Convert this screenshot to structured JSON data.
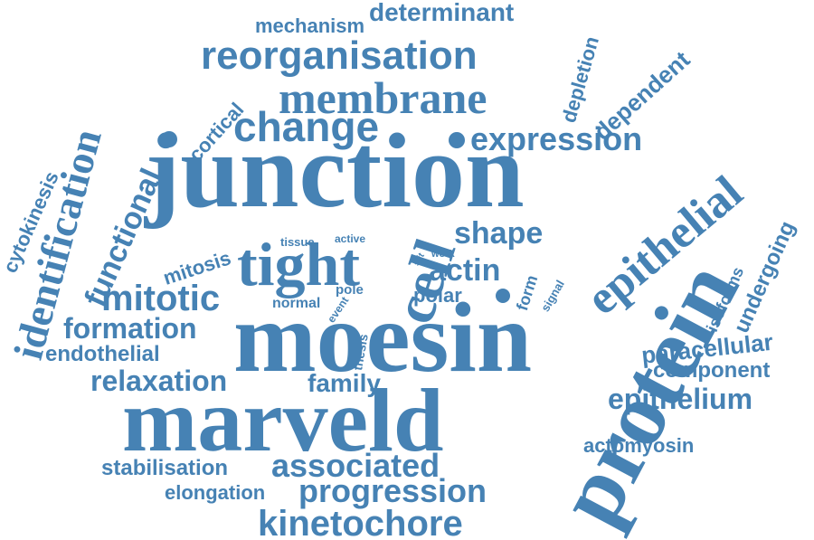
{
  "color": "#4682b4",
  "background": "#ffffff",
  "words": {
    "junction": "junction",
    "moesin": "moesin",
    "marveld": "marveld",
    "protein": "protein",
    "tight": "tight",
    "epithelial": "epithelial",
    "identification": "identification",
    "membrane": "membrane",
    "reorganisation": "reorganisation",
    "change": "change",
    "expression": "expression",
    "mitotic": "mitotic",
    "cell": "cell",
    "actin": "actin",
    "shape": "shape",
    "formation": "formation",
    "relaxation": "relaxation",
    "epithelium": "epithelium",
    "associated": "associated",
    "progression": "progression",
    "kinetochore": "kinetochore",
    "stabilisation": "stabilisation",
    "elongation": "elongation",
    "actomyosin": "actomyosin",
    "component": "component",
    "paracellular": "paracellular",
    "family": "family",
    "endothelial": "endothelial",
    "functional": "functional",
    "cytokinesis": "cytokinesis",
    "mitosis": "mitosis",
    "cortical": "cortical",
    "mechanism": "mechanism",
    "determinant": "determinant",
    "depletion": "depletion",
    "dependent": "dependent",
    "undergoing": "undergoing",
    "isoforms": "isoforms",
    "polar": "polar",
    "form": "form",
    "signal": "signal",
    "tissue": "tissue",
    "active": "active",
    "work": "work",
    "slit": "slit",
    "pole": "pole",
    "normal": "normal",
    "event": "event",
    "thesis": "thesis"
  }
}
